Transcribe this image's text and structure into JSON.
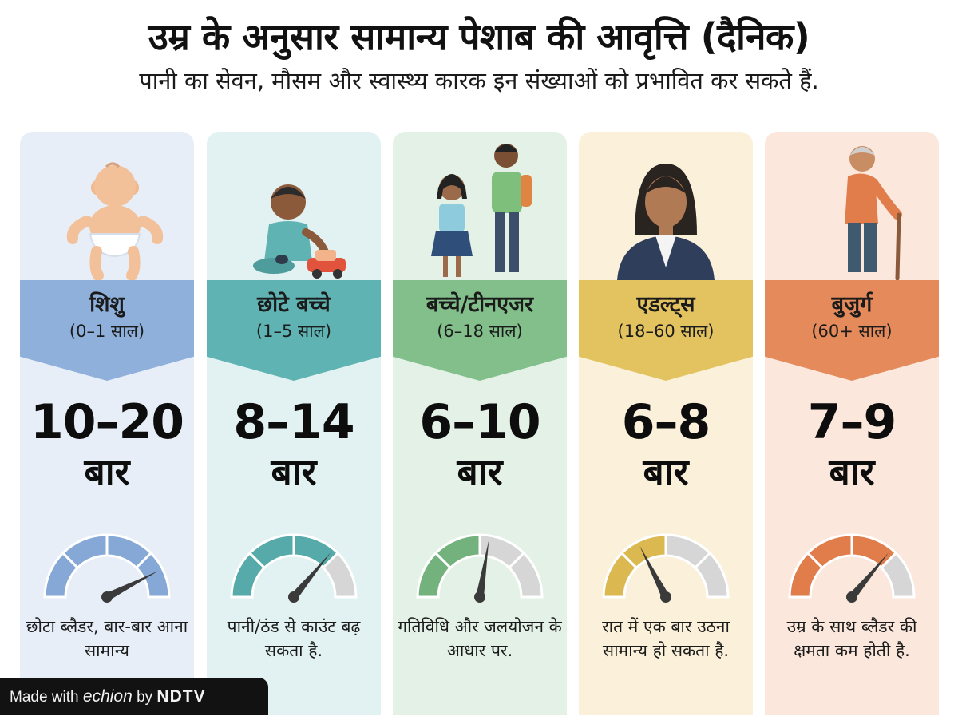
{
  "header": {
    "title": "उम्र के अनुसार सामान्य पेशाब की आवृत्ति (दैनिक)",
    "subtitle": "पानी का सेवन, मौसम और स्वास्थ्य कारक इन संख्याओं को प्रभावित कर सकते हैं."
  },
  "cards": [
    {
      "illustration_icon": "baby-icon",
      "name": "शिशु",
      "range": "(0–1 साल)",
      "frequency": "10–20",
      "unit": "बार",
      "gauge_level": 0.85,
      "note": "छोटा ब्लैडर, बार-बार आना सामान्य",
      "bg_color": "#e7eef8",
      "banner_color": "#8fb0db",
      "gauge_color": "#86a8d6"
    },
    {
      "illustration_icon": "toddler-with-toy-car-icon",
      "name": "छोटे बच्चे",
      "range": "(1–5 साल)",
      "frequency": "8–14",
      "unit": "बार",
      "gauge_level": 0.72,
      "note": "पानी/ठंड से काउंट बढ़ सकता है.",
      "bg_color": "#e2f1f1",
      "banner_color": "#5fb3b3",
      "gauge_color": "#56aaa9"
    },
    {
      "illustration_icon": "schoolchildren-icon",
      "name": "बच्चे/टीनएजर",
      "range": "(6–18 साल)",
      "frequency": "6–10",
      "unit": "बार",
      "gauge_level": 0.55,
      "note": "गतिविधि और जलयोजन के आधार पर.",
      "bg_color": "#e4f1e6",
      "banner_color": "#82bf8a",
      "gauge_color": "#73b27c"
    },
    {
      "illustration_icon": "adult-woman-icon",
      "name": "एडल्ट्स",
      "range": "(18–60 साल)",
      "frequency": "6–8",
      "unit": "बार",
      "gauge_level": 0.35,
      "note": "रात में एक बार उठना सामान्य हो सकता है.",
      "bg_color": "#fbf1da",
      "banner_color": "#e3c35f",
      "gauge_color": "#dcb950"
    },
    {
      "illustration_icon": "elderly-man-with-cane-icon",
      "name": "बुजुर्ग",
      "range": "(60+ साल)",
      "frequency": "7–9",
      "unit": "बार",
      "gauge_level": 0.72,
      "note": "उम्र के साथ ब्लैडर की क्षमता कम होती है.",
      "bg_color": "#fbe7dc",
      "banner_color": "#e58a5b",
      "gauge_color": "#e07d4b"
    }
  ],
  "credit": {
    "made_with": "Made with",
    "brand": "echion",
    "by": "by",
    "network": "NDTV"
  }
}
